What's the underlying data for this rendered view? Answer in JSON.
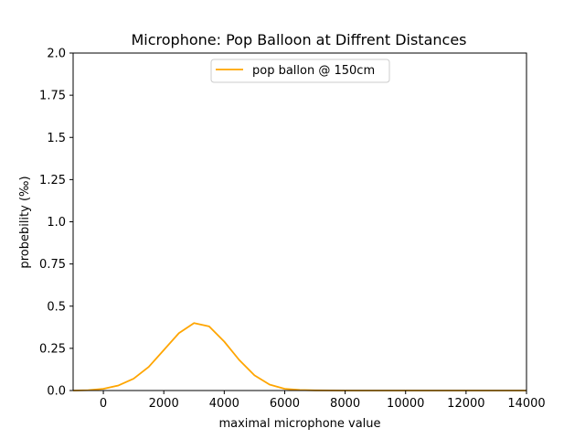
{
  "chart_data": {
    "type": "line",
    "title": "Microphone: Pop Balloon at Diffrent Distances",
    "xlabel": "maximal microphone value",
    "ylabel": "probebility (‰)",
    "xlim": [
      -1000,
      14000
    ],
    "ylim": [
      0,
      2.0
    ],
    "xticks": [
      0,
      2000,
      4000,
      6000,
      8000,
      10000,
      12000,
      14000
    ],
    "xtick_labels": [
      "0",
      "2000",
      "4000",
      "6000",
      "8000",
      "10000",
      "12000",
      "14000"
    ],
    "yticks": [
      0,
      0.25,
      0.5,
      0.75,
      1.0,
      1.25,
      1.5,
      1.75,
      2.0
    ],
    "ytick_labels": [
      "0.0",
      "0.25",
      "0.5",
      "0.75",
      "1.0",
      "1.25",
      "1.5",
      "1.75",
      "2.0"
    ],
    "grid": false,
    "legend_position": "upper center",
    "series": [
      {
        "name": "pop ballon @ 150cm",
        "color": "#ffa500",
        "x": [
          -1000,
          -500,
          0,
          500,
          1000,
          1500,
          2000,
          2500,
          3000,
          3500,
          4000,
          4500,
          5000,
          5500,
          6000,
          6500,
          7000,
          8000,
          9000,
          10000,
          11000,
          12000,
          13000,
          14000
        ],
        "y": [
          0.0,
          0.002,
          0.01,
          0.03,
          0.07,
          0.14,
          0.24,
          0.34,
          0.4,
          0.38,
          0.29,
          0.18,
          0.09,
          0.035,
          0.01,
          0.003,
          0.001,
          0.0,
          0.0,
          0.0,
          0.0,
          0.0,
          0.0,
          0.0
        ]
      }
    ]
  }
}
